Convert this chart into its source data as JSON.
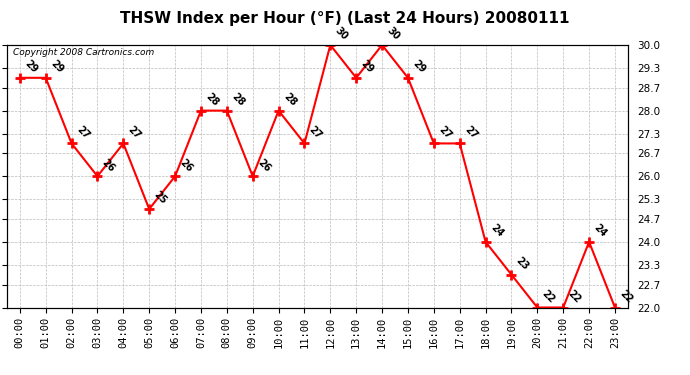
{
  "title": "THSW Index per Hour (°F) (Last 24 Hours) 20080111",
  "copyright": "Copyright 2008 Cartronics.com",
  "hours": [
    "00:00",
    "01:00",
    "02:00",
    "03:00",
    "04:00",
    "05:00",
    "06:00",
    "07:00",
    "08:00",
    "09:00",
    "10:00",
    "11:00",
    "12:00",
    "13:00",
    "14:00",
    "15:00",
    "16:00",
    "17:00",
    "18:00",
    "19:00",
    "20:00",
    "21:00",
    "22:00",
    "23:00"
  ],
  "values": [
    29,
    29,
    27,
    26,
    27,
    25,
    26,
    28,
    28,
    26,
    28,
    27,
    30,
    29,
    30,
    29,
    27,
    27,
    24,
    23,
    22,
    22,
    24,
    22
  ],
  "ylim_min": 22.0,
  "ylim_max": 30.0,
  "yticks": [
    22.0,
    22.7,
    23.3,
    24.0,
    24.7,
    25.3,
    26.0,
    26.7,
    27.3,
    28.0,
    28.7,
    29.3,
    30.0
  ],
  "line_color": "red",
  "marker_color": "red",
  "bg_color": "white",
  "grid_color": "#bbbbbb",
  "title_fontsize": 11,
  "tick_fontsize": 7.5,
  "annotation_fontsize": 7
}
